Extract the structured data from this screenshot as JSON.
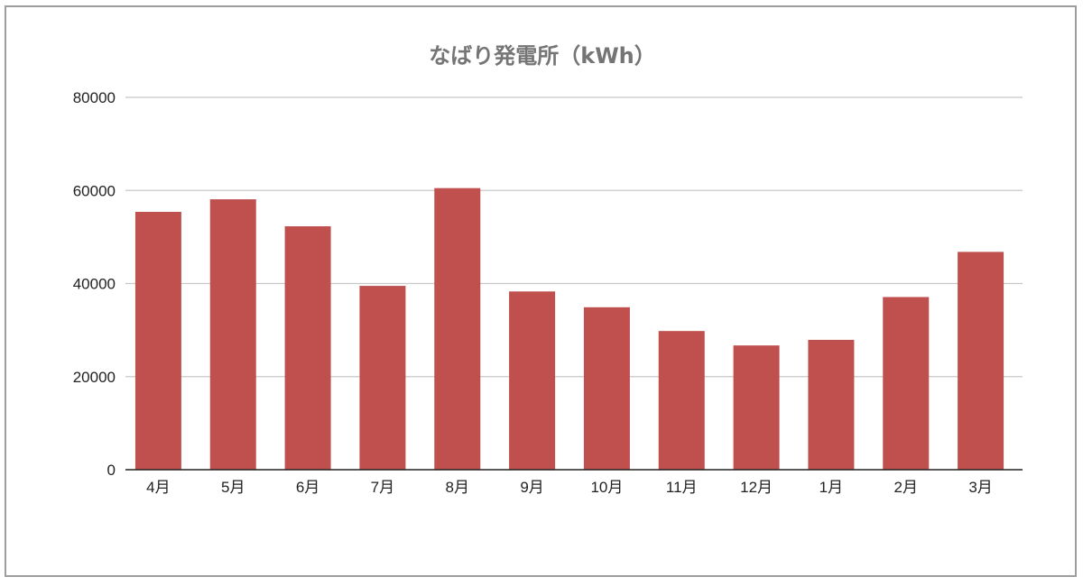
{
  "chart_data": {
    "type": "bar",
    "title": "なばり発電所（kWh）",
    "categories": [
      "4月",
      "5月",
      "6月",
      "7月",
      "8月",
      "9月",
      "10月",
      "11月",
      "12月",
      "1月",
      "2月",
      "3月"
    ],
    "values": [
      55400,
      58100,
      52300,
      39500,
      60500,
      38300,
      34900,
      29800,
      26700,
      27900,
      37100,
      46800
    ],
    "ylim": [
      0,
      80000
    ],
    "yticks": [
      "0",
      "20000",
      "40000",
      "60000",
      "80000"
    ],
    "bar_color": "#c0504d",
    "gridlines": true,
    "legend": "none"
  }
}
